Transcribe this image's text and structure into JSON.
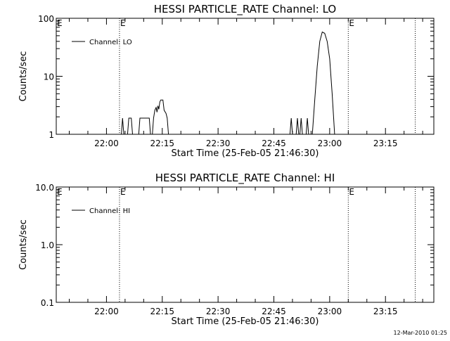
{
  "footer": {
    "timestamp": "12-Mar-2010 01:25"
  },
  "chart_data": [
    {
      "type": "line",
      "title": "HESSI PARTICLE_RATE Channel: LO",
      "xlabel": "Start Time (25-Feb-05 21:46:30)",
      "ylabel": "Counts/sec",
      "y_scale": "log",
      "ylim": [
        1,
        100
      ],
      "y_ticks": [
        {
          "v": 1,
          "label": "1"
        },
        {
          "v": 10,
          "label": "10"
        },
        {
          "v": 100,
          "label": "100"
        }
      ],
      "xlim": [
        "21:46:30",
        "23:28:00"
      ],
      "x_ticks": [
        "22:00",
        "22:15",
        "22:30",
        "22:45",
        "23:00",
        "23:15"
      ],
      "legend": {
        "placement": "top-left",
        "entries": [
          "Channel: LO"
        ]
      },
      "event_markers": [
        {
          "time": "22:03:30",
          "label": "E"
        },
        {
          "time": "23:05:00",
          "label": "E"
        },
        {
          "time": "23:23:00",
          "label": ""
        }
      ],
      "series": [
        {
          "name": "Channel: LO",
          "color": "#000000",
          "points": [
            {
              "x": "22:04:00",
              "y": 1
            },
            {
              "x": "22:04:20",
              "y": 1.9
            },
            {
              "x": "22:04:40",
              "y": 1
            },
            {
              "x": "22:05:40",
              "y": 1
            },
            {
              "x": "22:06:00",
              "y": 1.9
            },
            {
              "x": "22:06:40",
              "y": 1.9
            },
            {
              "x": "22:07:00",
              "y": 1
            },
            {
              "x": "22:08:40",
              "y": 1
            },
            {
              "x": "22:09:00",
              "y": 1.9
            },
            {
              "x": "22:11:30",
              "y": 1.9
            },
            {
              "x": "22:11:50",
              "y": 1
            },
            {
              "x": "22:12:20",
              "y": 1
            },
            {
              "x": "22:12:40",
              "y": 1.9
            },
            {
              "x": "22:13:00",
              "y": 2.6
            },
            {
              "x": "22:13:20",
              "y": 2.9
            },
            {
              "x": "22:13:35",
              "y": 2.4
            },
            {
              "x": "22:13:50",
              "y": 3.1
            },
            {
              "x": "22:14:05",
              "y": 2.7
            },
            {
              "x": "22:14:20",
              "y": 3.6
            },
            {
              "x": "22:14:35",
              "y": 3.9
            },
            {
              "x": "22:15:10",
              "y": 3.9
            },
            {
              "x": "22:15:30",
              "y": 2.6
            },
            {
              "x": "22:16:00",
              "y": 2.3
            },
            {
              "x": "22:16:20",
              "y": 1.9
            },
            {
              "x": "22:16:40",
              "y": 1
            },
            {
              "x": "22:49:20",
              "y": 1
            },
            {
              "x": "22:49:40",
              "y": 1.9
            },
            {
              "x": "22:50:00",
              "y": 1
            },
            {
              "x": "22:51:00",
              "y": 1
            },
            {
              "x": "22:51:20",
              "y": 1.9
            },
            {
              "x": "22:51:40",
              "y": 1
            },
            {
              "x": "22:52:00",
              "y": 1
            },
            {
              "x": "22:52:20",
              "y": 1.9
            },
            {
              "x": "22:52:40",
              "y": 1
            },
            {
              "x": "22:53:40",
              "y": 1
            },
            {
              "x": "22:54:00",
              "y": 1.9
            },
            {
              "x": "22:54:20",
              "y": 1
            },
            {
              "x": "22:55:20",
              "y": 1
            },
            {
              "x": "22:56:00",
              "y": 4
            },
            {
              "x": "22:56:40",
              "y": 15
            },
            {
              "x": "22:57:20",
              "y": 40
            },
            {
              "x": "22:58:00",
              "y": 58
            },
            {
              "x": "22:58:40",
              "y": 55
            },
            {
              "x": "22:59:20",
              "y": 40
            },
            {
              "x": "23:00:00",
              "y": 20
            },
            {
              "x": "23:00:40",
              "y": 5
            },
            {
              "x": "23:01:20",
              "y": 1
            }
          ]
        }
      ]
    },
    {
      "type": "line",
      "title": "HESSI PARTICLE_RATE Channel: HI",
      "xlabel": "Start Time (25-Feb-05 21:46:30)",
      "ylabel": "Counts/sec",
      "y_scale": "log",
      "ylim": [
        0.1,
        10
      ],
      "y_ticks": [
        {
          "v": 0.1,
          "label": "0.1"
        },
        {
          "v": 1,
          "label": "1.0"
        },
        {
          "v": 10,
          "label": "10.0"
        }
      ],
      "xlim": [
        "21:46:30",
        "23:28:00"
      ],
      "x_ticks": [
        "22:00",
        "22:15",
        "22:30",
        "22:45",
        "23:00",
        "23:15"
      ],
      "legend": {
        "placement": "top-left",
        "entries": [
          "Channel: HI"
        ]
      },
      "event_markers": [
        {
          "time": "22:03:30",
          "label": "E"
        },
        {
          "time": "23:05:00",
          "label": "E"
        },
        {
          "time": "23:23:00",
          "label": ""
        }
      ],
      "series": [
        {
          "name": "Channel: HI",
          "color": "#000000",
          "points": []
        }
      ]
    }
  ]
}
